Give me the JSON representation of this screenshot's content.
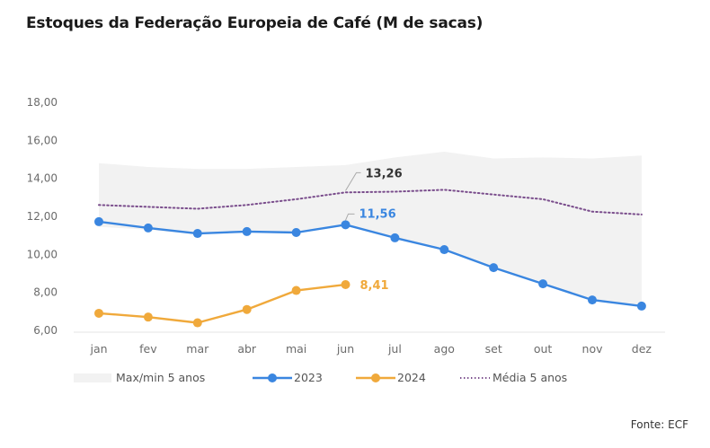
{
  "chart_data": {
    "type": "line",
    "title": "Estoques da Federação Europeia de Café (M de sacas)",
    "xlabel": "",
    "ylabel": "",
    "categories": [
      "jan",
      "fev",
      "mar",
      "abr",
      "mai",
      "jun",
      "jul",
      "ago",
      "set",
      "out",
      "nov",
      "dez"
    ],
    "ylim": [
      6,
      18
    ],
    "yticks": [
      "6,00",
      "8,00",
      "10,00",
      "12,00",
      "14,00",
      "16,00",
      "18,00"
    ],
    "ytick_values": [
      6,
      8,
      10,
      12,
      14,
      16,
      18
    ],
    "grid": false,
    "band": {
      "name": "Max/min 5 anos",
      "max": [
        14.8,
        14.6,
        14.5,
        14.5,
        14.6,
        14.7,
        15.1,
        15.4,
        15.05,
        15.1,
        15.05,
        15.2
      ],
      "min": [
        11.45,
        11.3,
        11.05,
        11.15,
        11.1,
        11.5,
        10.87,
        10.25,
        9.3,
        8.45,
        7.6,
        7.28
      ],
      "color": "#f2f2f2"
    },
    "series": [
      {
        "name": "2023",
        "color": "#3a86e0",
        "values": [
          11.72,
          11.39,
          11.1,
          11.2,
          11.15,
          11.56,
          10.87,
          10.25,
          9.3,
          8.45,
          7.6,
          7.28
        ],
        "label": {
          "index": 5,
          "text": "11,56"
        }
      },
      {
        "name": "2024",
        "color": "#f0a93b",
        "values": [
          6.9,
          6.7,
          6.4,
          7.1,
          8.1,
          8.41,
          null,
          null,
          null,
          null,
          null,
          null
        ],
        "label": {
          "index": 5,
          "text": "8,41"
        }
      },
      {
        "name": "Média 5 anos",
        "color": "#7a4d8c",
        "dotted": true,
        "values": [
          12.6,
          12.5,
          12.4,
          12.6,
          12.9,
          13.26,
          13.3,
          13.4,
          13.15,
          12.9,
          12.25,
          12.1
        ],
        "label": {
          "index": 5,
          "text": "13,26"
        }
      }
    ],
    "legend": {
      "placement": "bottom",
      "entries": [
        "Max/min 5 anos",
        "2023",
        "2024",
        "Média 5 anos"
      ]
    },
    "source": "Fonte: ECF"
  }
}
